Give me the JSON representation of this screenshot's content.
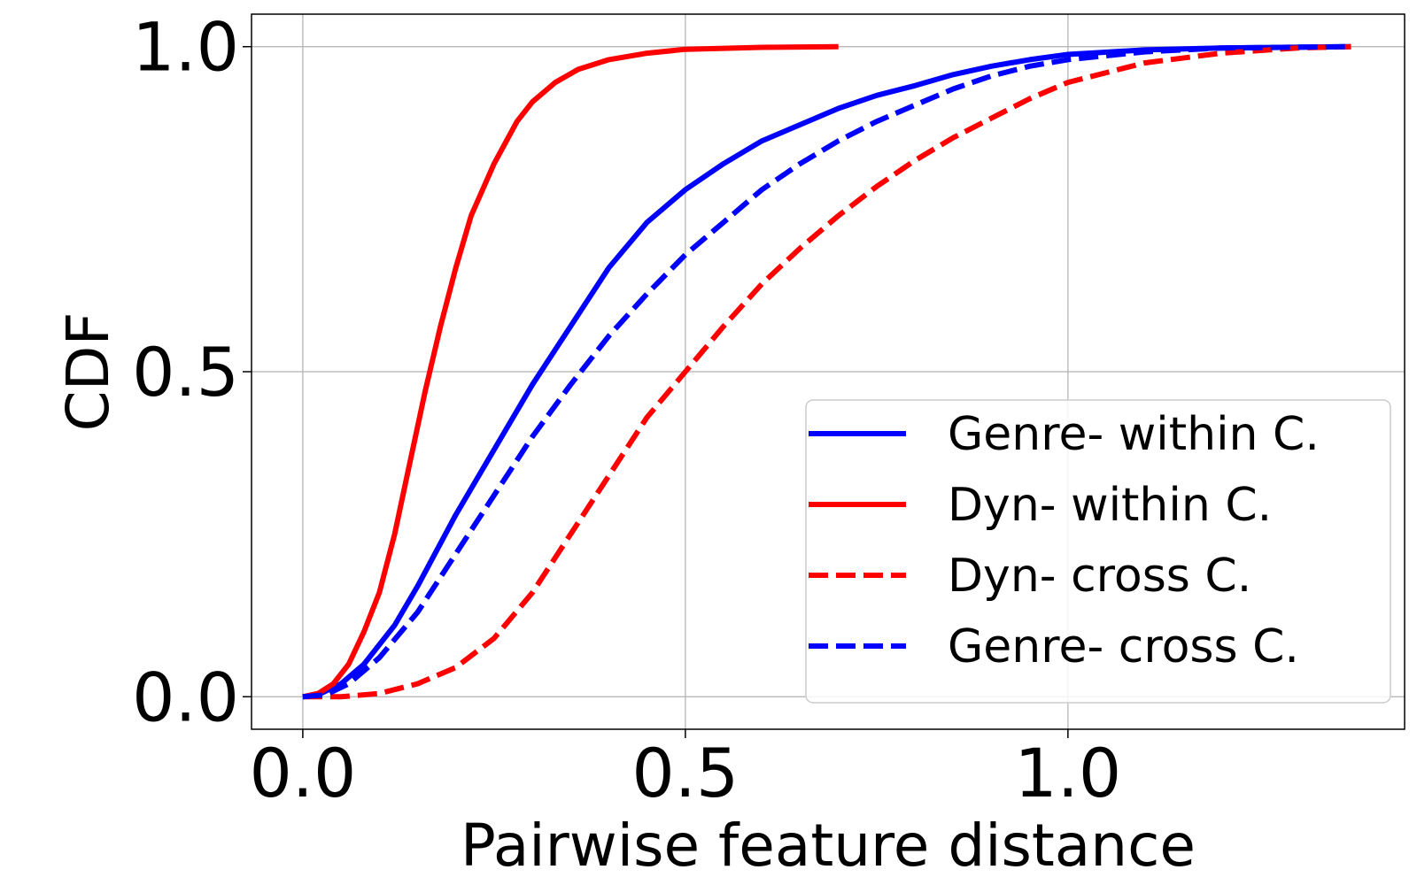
{
  "chart_data": {
    "type": "line",
    "title": "",
    "xlabel": "Pairwise feature distance",
    "ylabel": "CDF",
    "xlim": [
      -0.067,
      1.44
    ],
    "ylim": [
      -0.05,
      1.05
    ],
    "xticks": [
      0.0,
      0.5,
      1.0
    ],
    "xtick_labels": [
      "0.0",
      "0.5",
      "1.0"
    ],
    "yticks": [
      0.0,
      0.5,
      1.0
    ],
    "ytick_labels": [
      "0.0",
      "0.5",
      "1.0"
    ],
    "grid": true,
    "legend_position": "lower right",
    "series": [
      {
        "name": "Genre- within C.",
        "color": "#0000ff",
        "linestyle": "solid",
        "points": [
          [
            0.0,
            0.0
          ],
          [
            0.02,
            0.003
          ],
          [
            0.05,
            0.02
          ],
          [
            0.08,
            0.05
          ],
          [
            0.1,
            0.08
          ],
          [
            0.12,
            0.11
          ],
          [
            0.15,
            0.17
          ],
          [
            0.2,
            0.28
          ],
          [
            0.25,
            0.38
          ],
          [
            0.3,
            0.48
          ],
          [
            0.35,
            0.57
          ],
          [
            0.4,
            0.66
          ],
          [
            0.45,
            0.73
          ],
          [
            0.5,
            0.78
          ],
          [
            0.55,
            0.82
          ],
          [
            0.6,
            0.855
          ],
          [
            0.65,
            0.88
          ],
          [
            0.7,
            0.905
          ],
          [
            0.75,
            0.925
          ],
          [
            0.8,
            0.94
          ],
          [
            0.85,
            0.957
          ],
          [
            0.9,
            0.97
          ],
          [
            0.95,
            0.98
          ],
          [
            1.0,
            0.988
          ],
          [
            1.1,
            0.995
          ],
          [
            1.2,
            0.998
          ],
          [
            1.37,
            1.0
          ]
        ]
      },
      {
        "name": "Dyn- within C.",
        "color": "#ff0000",
        "linestyle": "solid",
        "points": [
          [
            0.0,
            0.0
          ],
          [
            0.02,
            0.005
          ],
          [
            0.04,
            0.02
          ],
          [
            0.06,
            0.05
          ],
          [
            0.08,
            0.1
          ],
          [
            0.1,
            0.16
          ],
          [
            0.12,
            0.25
          ],
          [
            0.14,
            0.36
          ],
          [
            0.16,
            0.47
          ],
          [
            0.18,
            0.57
          ],
          [
            0.2,
            0.66
          ],
          [
            0.22,
            0.74
          ],
          [
            0.25,
            0.82
          ],
          [
            0.28,
            0.885
          ],
          [
            0.3,
            0.915
          ],
          [
            0.33,
            0.945
          ],
          [
            0.36,
            0.965
          ],
          [
            0.4,
            0.98
          ],
          [
            0.45,
            0.99
          ],
          [
            0.5,
            0.996
          ],
          [
            0.6,
            0.999
          ],
          [
            0.7,
            1.0
          ]
        ]
      },
      {
        "name": "Dyn- cross C.",
        "color": "#ff0000",
        "linestyle": "dashed",
        "points": [
          [
            0.0,
            0.0
          ],
          [
            0.05,
            0.0
          ],
          [
            0.1,
            0.005
          ],
          [
            0.15,
            0.02
          ],
          [
            0.2,
            0.045
          ],
          [
            0.25,
            0.09
          ],
          [
            0.3,
            0.16
          ],
          [
            0.35,
            0.25
          ],
          [
            0.4,
            0.34
          ],
          [
            0.45,
            0.43
          ],
          [
            0.5,
            0.5
          ],
          [
            0.55,
            0.57
          ],
          [
            0.6,
            0.635
          ],
          [
            0.65,
            0.69
          ],
          [
            0.7,
            0.74
          ],
          [
            0.75,
            0.785
          ],
          [
            0.8,
            0.825
          ],
          [
            0.85,
            0.86
          ],
          [
            0.9,
            0.89
          ],
          [
            0.95,
            0.92
          ],
          [
            1.0,
            0.945
          ],
          [
            1.05,
            0.96
          ],
          [
            1.1,
            0.975
          ],
          [
            1.2,
            0.99
          ],
          [
            1.3,
            0.998
          ],
          [
            1.37,
            1.0
          ]
        ]
      },
      {
        "name": "Genre- cross C.",
        "color": "#0000ff",
        "linestyle": "dashed",
        "points": [
          [
            0.0,
            0.0
          ],
          [
            0.03,
            0.003
          ],
          [
            0.06,
            0.02
          ],
          [
            0.1,
            0.06
          ],
          [
            0.15,
            0.13
          ],
          [
            0.2,
            0.22
          ],
          [
            0.25,
            0.31
          ],
          [
            0.3,
            0.4
          ],
          [
            0.35,
            0.48
          ],
          [
            0.4,
            0.555
          ],
          [
            0.45,
            0.62
          ],
          [
            0.5,
            0.68
          ],
          [
            0.55,
            0.73
          ],
          [
            0.6,
            0.78
          ],
          [
            0.65,
            0.82
          ],
          [
            0.7,
            0.855
          ],
          [
            0.75,
            0.885
          ],
          [
            0.8,
            0.91
          ],
          [
            0.85,
            0.935
          ],
          [
            0.9,
            0.955
          ],
          [
            0.95,
            0.97
          ],
          [
            1.0,
            0.98
          ],
          [
            1.1,
            0.992
          ],
          [
            1.2,
            0.998
          ],
          [
            1.37,
            1.0
          ]
        ]
      }
    ]
  }
}
